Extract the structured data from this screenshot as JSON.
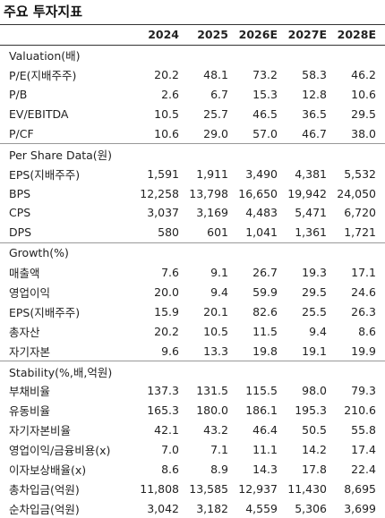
{
  "title": "주요 투자지표",
  "header": [
    "2024",
    "2025",
    "2026E",
    "2027E",
    "2028E"
  ],
  "sections": [
    {
      "title": "Valuation(배)",
      "rows": [
        {
          "label": "P/E(지배주주)",
          "values": [
            "20.2",
            "48.1",
            "73.2",
            "58.3",
            "46.2"
          ]
        },
        {
          "label": "P/B",
          "values": [
            "2.6",
            "6.7",
            "15.3",
            "12.8",
            "10.6"
          ]
        },
        {
          "label": "EV/EBITDA",
          "values": [
            "10.5",
            "25.7",
            "46.5",
            "36.5",
            "29.5"
          ]
        },
        {
          "label": "P/CF",
          "values": [
            "10.6",
            "29.0",
            "57.0",
            "46.7",
            "38.0"
          ]
        }
      ]
    },
    {
      "title": "Per Share Data(원)",
      "rows": [
        {
          "label": "EPS(지배주주)",
          "values": [
            "1,591",
            "1,911",
            "3,490",
            "4,381",
            "5,532"
          ]
        },
        {
          "label": "BPS",
          "values": [
            "12,258",
            "13,798",
            "16,650",
            "19,942",
            "24,050"
          ]
        },
        {
          "label": "CPS",
          "values": [
            "3,037",
            "3,169",
            "4,483",
            "5,471",
            "6,720"
          ]
        },
        {
          "label": "DPS",
          "values": [
            "580",
            "601",
            "1,041",
            "1,361",
            "1,721"
          ]
        }
      ]
    },
    {
      "title": "Growth(%)",
      "rows": [
        {
          "label": "매출액",
          "values": [
            "7.6",
            "9.1",
            "26.7",
            "19.3",
            "17.1"
          ]
        },
        {
          "label": "영업이익",
          "values": [
            "20.0",
            "9.4",
            "59.9",
            "29.5",
            "24.6"
          ]
        },
        {
          "label": "EPS(지배주주)",
          "values": [
            "15.9",
            "20.1",
            "82.6",
            "25.5",
            "26.3"
          ]
        },
        {
          "label": "총자산",
          "values": [
            "20.2",
            "10.5",
            "11.5",
            "9.4",
            "8.6"
          ]
        },
        {
          "label": "자기자본",
          "values": [
            "9.6",
            "13.3",
            "19.8",
            "19.1",
            "19.9"
          ]
        }
      ]
    },
    {
      "title": "Stability(%,배,억원)",
      "rows": [
        {
          "label": "부채비율",
          "values": [
            "137.3",
            "131.5",
            "115.5",
            "98.0",
            "79.3"
          ]
        },
        {
          "label": "유동비율",
          "values": [
            "165.3",
            "180.0",
            "186.1",
            "195.3",
            "210.6"
          ]
        },
        {
          "label": "자기자본비율",
          "values": [
            "42.1",
            "43.2",
            "46.4",
            "50.5",
            "55.8"
          ]
        },
        {
          "label": "영업이익/금융비용(x)",
          "values": [
            "7.0",
            "7.1",
            "11.1",
            "14.2",
            "17.4"
          ]
        },
        {
          "label": "이자보상배율(x)",
          "values": [
            "8.6",
            "8.9",
            "14.3",
            "17.8",
            "22.4"
          ]
        },
        {
          "label": "총차입금(억원)",
          "values": [
            "11,808",
            "13,585",
            "12,937",
            "11,430",
            "8,695"
          ]
        },
        {
          "label": "순차입금(억원)",
          "values": [
            "3,042",
            "3,182",
            "4,559",
            "5,306",
            "3,699"
          ]
        }
      ]
    }
  ]
}
